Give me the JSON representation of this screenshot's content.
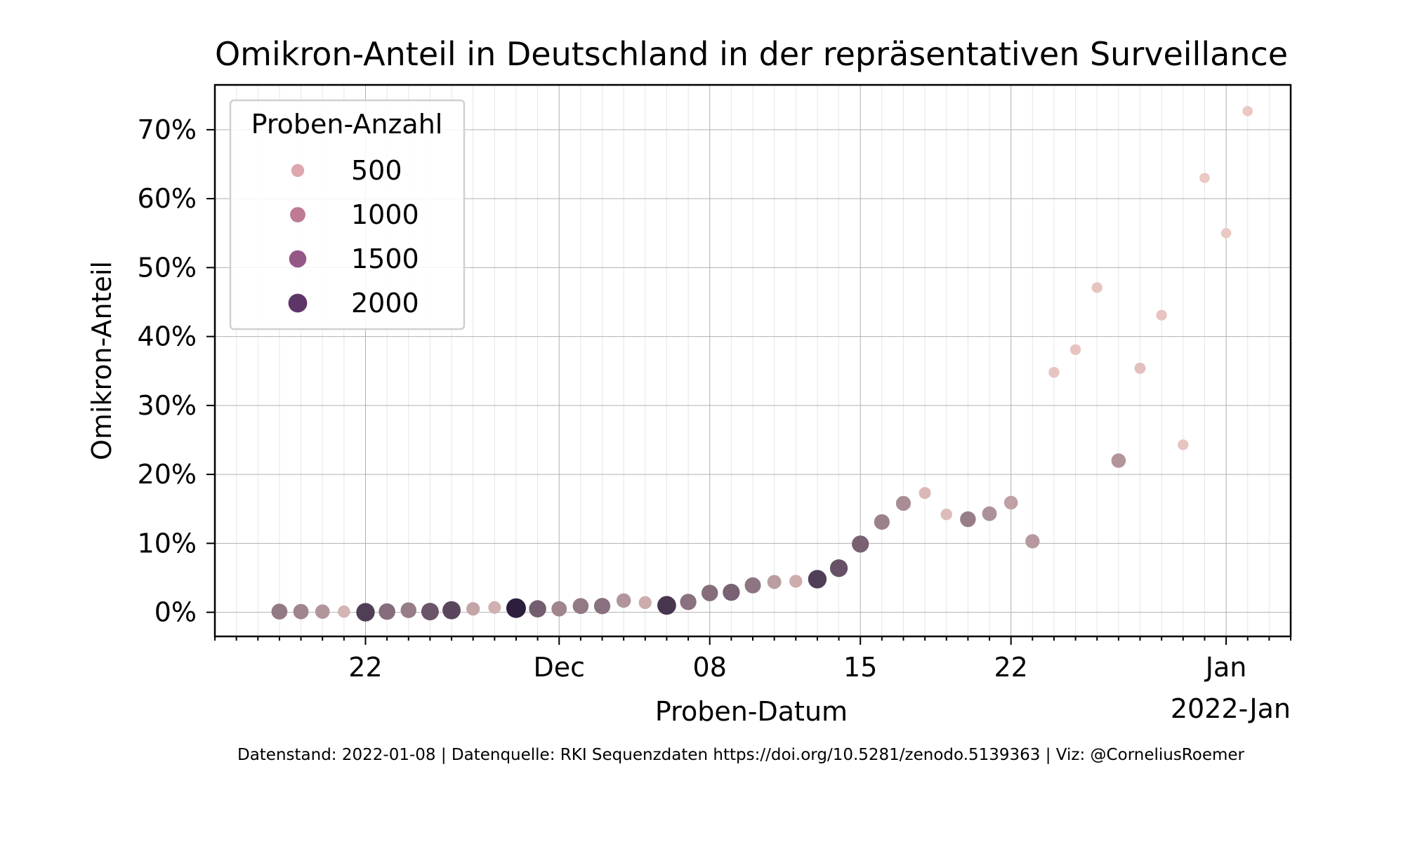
{
  "chart_data": {
    "type": "scatter",
    "title": "Omikron-Anteil in Deutschland in der repräsentativen Surveillance",
    "xlabel": "Proben-Datum",
    "ylabel": "Omikron-Anteil",
    "x_tick_labels": [
      {
        "date": "2021-11-22",
        "label": "22"
      },
      {
        "date": "2021-12-01",
        "label": "Dec"
      },
      {
        "date": "2021-12-08",
        "label": "08"
      },
      {
        "date": "2021-12-15",
        "label": "15"
      },
      {
        "date": "2021-12-22",
        "label": "22"
      },
      {
        "date": "2022-01-01",
        "label": "Jan"
      }
    ],
    "x_offset_label": "2022-Jan",
    "xlim": [
      "2021-11-15",
      "2022-01-04"
    ],
    "y_ticks": [
      0,
      10,
      20,
      30,
      40,
      50,
      60,
      70
    ],
    "y_tick_format": "%",
    "ylim": [
      -3.5,
      76.5
    ],
    "grid": true,
    "legend": {
      "title": "Proben-Anzahl",
      "placement": "top-left",
      "entries": [
        {
          "label": "500",
          "value": 500,
          "color": "#dea6ae"
        },
        {
          "label": "1000",
          "value": 1000,
          "color": "#be7a94"
        },
        {
          "label": "1500",
          "value": 1500,
          "color": "#955786"
        },
        {
          "label": "2000",
          "value": 2000,
          "color": "#5e3567"
        }
      ]
    },
    "color_scale": {
      "min_count": 150,
      "max_count": 2300,
      "light": "#ebc8c3",
      "dark": "#2d1e3e"
    },
    "points": [
      {
        "date": "2021-11-18",
        "y": 0.1,
        "n": 1150
      },
      {
        "date": "2021-11-19",
        "y": 0.1,
        "n": 1000
      },
      {
        "date": "2021-11-20",
        "y": 0.1,
        "n": 800
      },
      {
        "date": "2021-11-21",
        "y": 0.1,
        "n": 400
      },
      {
        "date": "2021-11-22",
        "y": 0.0,
        "n": 1900
      },
      {
        "date": "2021-11-23",
        "y": 0.1,
        "n": 1300
      },
      {
        "date": "2021-11-24",
        "y": 0.3,
        "n": 1100
      },
      {
        "date": "2021-11-25",
        "y": 0.1,
        "n": 1600
      },
      {
        "date": "2021-11-26",
        "y": 0.3,
        "n": 1800
      },
      {
        "date": "2021-11-27",
        "y": 0.5,
        "n": 600
      },
      {
        "date": "2021-11-28",
        "y": 0.7,
        "n": 450
      },
      {
        "date": "2021-11-29",
        "y": 0.6,
        "n": 2300
      },
      {
        "date": "2021-11-30",
        "y": 0.5,
        "n": 1500
      },
      {
        "date": "2021-12-01",
        "y": 0.5,
        "n": 1000
      },
      {
        "date": "2021-12-02",
        "y": 0.9,
        "n": 1150
      },
      {
        "date": "2021-12-03",
        "y": 0.9,
        "n": 1250
      },
      {
        "date": "2021-12-04",
        "y": 1.7,
        "n": 800
      },
      {
        "date": "2021-12-05",
        "y": 1.4,
        "n": 500
      },
      {
        "date": "2021-12-06",
        "y": 1.0,
        "n": 2000
      },
      {
        "date": "2021-12-07",
        "y": 1.5,
        "n": 1250
      },
      {
        "date": "2021-12-08",
        "y": 2.8,
        "n": 1300
      },
      {
        "date": "2021-12-09",
        "y": 2.9,
        "n": 1450
      },
      {
        "date": "2021-12-10",
        "y": 3.9,
        "n": 1200
      },
      {
        "date": "2021-12-11",
        "y": 4.4,
        "n": 700
      },
      {
        "date": "2021-12-12",
        "y": 4.5,
        "n": 500
      },
      {
        "date": "2021-12-13",
        "y": 4.8,
        "n": 1900
      },
      {
        "date": "2021-12-14",
        "y": 6.4,
        "n": 1650
      },
      {
        "date": "2021-12-15",
        "y": 9.9,
        "n": 1450
      },
      {
        "date": "2021-12-16",
        "y": 13.1,
        "n": 1050
      },
      {
        "date": "2021-12-17",
        "y": 15.8,
        "n": 900
      },
      {
        "date": "2021-12-18",
        "y": 17.3,
        "n": 350
      },
      {
        "date": "2021-12-19",
        "y": 14.2,
        "n": 300
      },
      {
        "date": "2021-12-20",
        "y": 13.5,
        "n": 1100
      },
      {
        "date": "2021-12-21",
        "y": 14.3,
        "n": 850
      },
      {
        "date": "2021-12-22",
        "y": 15.9,
        "n": 650
      },
      {
        "date": "2021-12-23",
        "y": 10.3,
        "n": 750
      },
      {
        "date": "2021-12-24",
        "y": 34.8,
        "n": 200
      },
      {
        "date": "2021-12-25",
        "y": 38.1,
        "n": 200
      },
      {
        "date": "2021-12-26",
        "y": 47.1,
        "n": 200
      },
      {
        "date": "2021-12-27",
        "y": 22.0,
        "n": 800
      },
      {
        "date": "2021-12-28",
        "y": 35.4,
        "n": 250
      },
      {
        "date": "2021-12-29",
        "y": 43.1,
        "n": 200
      },
      {
        "date": "2021-12-30",
        "y": 24.3,
        "n": 200
      },
      {
        "date": "2021-12-31",
        "y": 63.0,
        "n": 150
      },
      {
        "date": "2022-01-01",
        "y": 55.0,
        "n": 150
      },
      {
        "date": "2022-01-02",
        "y": 72.7,
        "n": 150
      }
    ]
  },
  "footer": "Datenstand: 2022-01-08 | Datenquelle: RKI Sequenzdaten https://doi.org/10.5281/zenodo.5139363 | Viz: @CorneliusRoemer"
}
